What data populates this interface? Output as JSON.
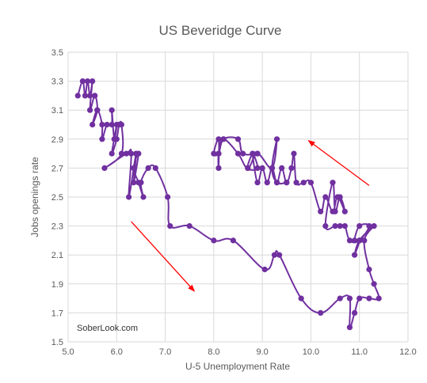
{
  "chart_data": {
    "type": "line",
    "title": "US Beveridge Curve",
    "xlabel": "U-5 Unemployment Rate",
    "ylabel": "Jobs openings rate",
    "xlim": [
      5.0,
      12.0
    ],
    "ylim": [
      1.5,
      3.5
    ],
    "xticks": [
      "5.0",
      "6.0",
      "7.0",
      "8.0",
      "9.0",
      "10.0",
      "11.0",
      "12.0"
    ],
    "yticks": [
      "1.5",
      "1.7",
      "1.9",
      "2.1",
      "2.3",
      "2.5",
      "2.7",
      "2.9",
      "3.1",
      "3.3",
      "3.5"
    ],
    "grid": true,
    "line_color": "#7030A0",
    "annotation_color": "#FF0000",
    "watermark": "SoberLook.com",
    "series": [
      {
        "points": [
          [
            5.2,
            3.2
          ],
          [
            5.3,
            3.3
          ],
          [
            5.35,
            3.2
          ],
          [
            5.4,
            3.3
          ],
          [
            5.45,
            3.2
          ],
          [
            5.5,
            3.3
          ],
          [
            5.45,
            3.1
          ],
          [
            5.55,
            3.2
          ],
          [
            5.6,
            3.1
          ],
          [
            5.5,
            3.0
          ],
          [
            5.6,
            3.1
          ],
          [
            5.7,
            3.0
          ],
          [
            5.7,
            2.9
          ],
          [
            5.8,
            3.0
          ],
          [
            5.9,
            3.0
          ],
          [
            5.9,
            3.1
          ],
          [
            5.95,
            2.9
          ],
          [
            6.0,
            3.0
          ],
          [
            5.9,
            2.8
          ],
          [
            6.0,
            2.9
          ],
          [
            6.05,
            3.0
          ],
          [
            6.1,
            3.0
          ],
          [
            6.1,
            2.8
          ],
          [
            5.75,
            2.7
          ],
          [
            6.2,
            2.8
          ],
          [
            6.3,
            2.8
          ],
          [
            6.25,
            2.5
          ],
          [
            6.4,
            2.8
          ],
          [
            6.35,
            2.6
          ],
          [
            6.45,
            2.8
          ],
          [
            6.35,
            2.7
          ],
          [
            6.45,
            2.6
          ],
          [
            6.55,
            2.5
          ],
          [
            6.5,
            2.6
          ],
          [
            6.65,
            2.7
          ],
          [
            6.8,
            2.7
          ],
          [
            7.05,
            2.5
          ],
          [
            7.1,
            2.3
          ],
          [
            7.5,
            2.3
          ],
          [
            8.0,
            2.2
          ],
          [
            8.4,
            2.2
          ],
          [
            9.05,
            2.0
          ],
          [
            9.25,
            2.1
          ],
          [
            9.35,
            2.1
          ],
          [
            9.8,
            1.8
          ],
          [
            10.2,
            1.7
          ],
          [
            10.6,
            1.8
          ],
          [
            10.8,
            1.8
          ],
          [
            10.8,
            1.6
          ],
          [
            10.9,
            1.7
          ],
          [
            11.0,
            1.8
          ],
          [
            11.2,
            1.8
          ],
          [
            11.4,
            1.8
          ],
          [
            11.3,
            1.9
          ],
          [
            11.2,
            2.0
          ],
          [
            11.1,
            2.2
          ],
          [
            11.3,
            2.3
          ],
          [
            11.0,
            2.2
          ],
          [
            10.9,
            2.1
          ],
          [
            11.0,
            2.2
          ],
          [
            10.9,
            2.2
          ],
          [
            11.0,
            2.3
          ],
          [
            11.2,
            2.3
          ],
          [
            11.0,
            2.2
          ],
          [
            10.8,
            2.2
          ],
          [
            10.7,
            2.3
          ],
          [
            10.6,
            2.3
          ],
          [
            10.5,
            2.3
          ],
          [
            10.3,
            2.3
          ],
          [
            10.45,
            2.6
          ],
          [
            10.5,
            2.4
          ],
          [
            10.6,
            2.5
          ],
          [
            10.7,
            2.4
          ],
          [
            10.55,
            2.5
          ],
          [
            10.45,
            2.4
          ],
          [
            10.3,
            2.5
          ],
          [
            10.2,
            2.4
          ],
          [
            10.0,
            2.6
          ],
          [
            9.85,
            2.6
          ],
          [
            9.7,
            2.6
          ],
          [
            9.65,
            2.8
          ],
          [
            9.6,
            2.7
          ],
          [
            9.5,
            2.6
          ],
          [
            9.4,
            2.7
          ],
          [
            9.3,
            2.6
          ],
          [
            9.2,
            2.7
          ],
          [
            9.1,
            2.6
          ],
          [
            9.0,
            2.7
          ],
          [
            8.9,
            2.6
          ],
          [
            8.8,
            2.8
          ],
          [
            8.9,
            2.7
          ],
          [
            8.7,
            2.7
          ],
          [
            8.8,
            2.8
          ],
          [
            8.9,
            2.8
          ],
          [
            8.6,
            2.8
          ],
          [
            8.5,
            2.9
          ],
          [
            8.2,
            2.9
          ],
          [
            8.1,
            2.8
          ],
          [
            8.0,
            2.8
          ],
          [
            8.1,
            2.9
          ],
          [
            8.1,
            2.7
          ],
          [
            8.1,
            2.8
          ],
          [
            8.2,
            2.9
          ],
          [
            8.5,
            2.8
          ],
          [
            8.7,
            2.7
          ],
          [
            8.9,
            2.8
          ],
          [
            9.2,
            2.7
          ],
          [
            9.3,
            2.9
          ],
          [
            9.2,
            2.7
          ],
          [
            9.3,
            2.6
          ],
          [
            9.5,
            2.6
          ]
        ]
      }
    ],
    "annotations": [
      {
        "type": "arrow",
        "from": [
          6.3,
          2.33
        ],
        "to": [
          7.6,
          1.85
        ]
      },
      {
        "type": "arrow",
        "from": [
          11.2,
          2.58
        ],
        "to": [
          9.95,
          2.89
        ]
      }
    ]
  }
}
